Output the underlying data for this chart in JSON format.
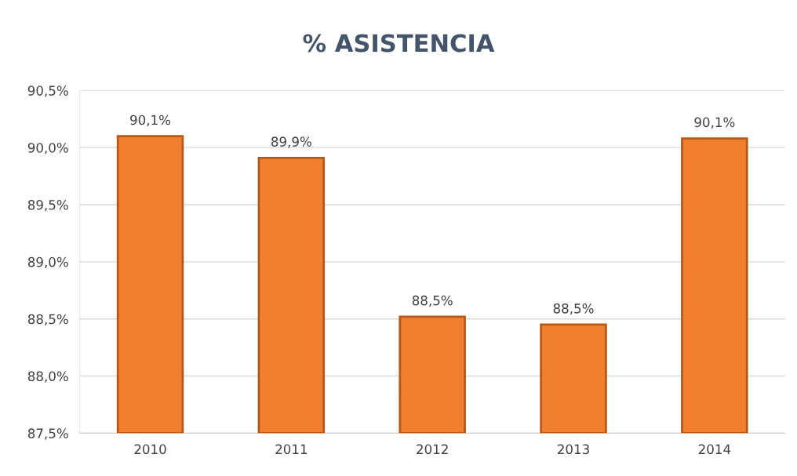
{
  "chart_data": {
    "type": "bar",
    "title": "% ASISTENCIA",
    "categories": [
      "2010",
      "2011",
      "2012",
      "2013",
      "2014"
    ],
    "values": [
      90.1,
      89.91,
      88.52,
      88.45,
      90.08
    ],
    "value_labels": [
      "90,1%",
      "89,9%",
      "88,5%",
      "88,5%",
      "90,1%"
    ],
    "color": "#f0802f",
    "ylim": [
      87.5,
      90.5
    ],
    "yticks": [
      {
        "value": 87.5,
        "label": "87,5%"
      },
      {
        "value": 88.0,
        "label": "88,0%"
      },
      {
        "value": 88.5,
        "label": "88,5%"
      },
      {
        "value": 89.0,
        "label": "89,0%"
      },
      {
        "value": 89.5,
        "label": "89,5%"
      },
      {
        "value": 90.0,
        "label": "90,0%"
      },
      {
        "value": 90.5,
        "label": "90,5%"
      }
    ],
    "grid": "y"
  }
}
